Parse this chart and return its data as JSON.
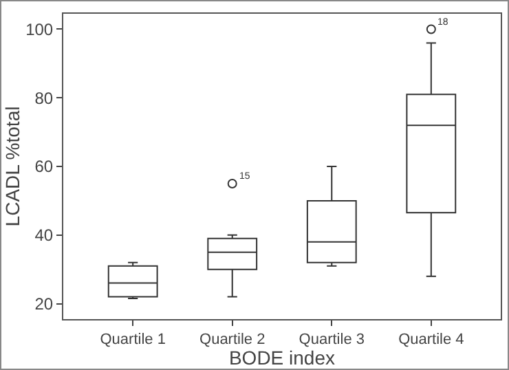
{
  "chart_data": {
    "type": "box",
    "xlabel": "BODE index",
    "ylabel": "LCADL %total",
    "categories": [
      "Quartile 1",
      "Quartile 2",
      "Quartile 3",
      "Quartile 4"
    ],
    "boxes": [
      {
        "low": 21.5,
        "q1": 22,
        "median": 26,
        "q3": 31,
        "high": 32
      },
      {
        "low": 22,
        "q1": 30,
        "median": 35,
        "q3": 39,
        "high": 40,
        "outliers": [
          55
        ]
      },
      {
        "low": 31,
        "q1": 32,
        "median": 38,
        "q3": 50,
        "high": 60
      },
      {
        "low": 28,
        "q1": 46.5,
        "median": 72,
        "q3": 81,
        "high": 96,
        "outliers": [
          100
        ]
      }
    ],
    "color": "#333333",
    "marker": "circle",
    "ylim": [
      15.5,
      104.5
    ],
    "yticks": [
      20,
      40,
      60,
      80,
      100
    ],
    "grid": false,
    "annotations": [
      "15",
      "18"
    ]
  }
}
